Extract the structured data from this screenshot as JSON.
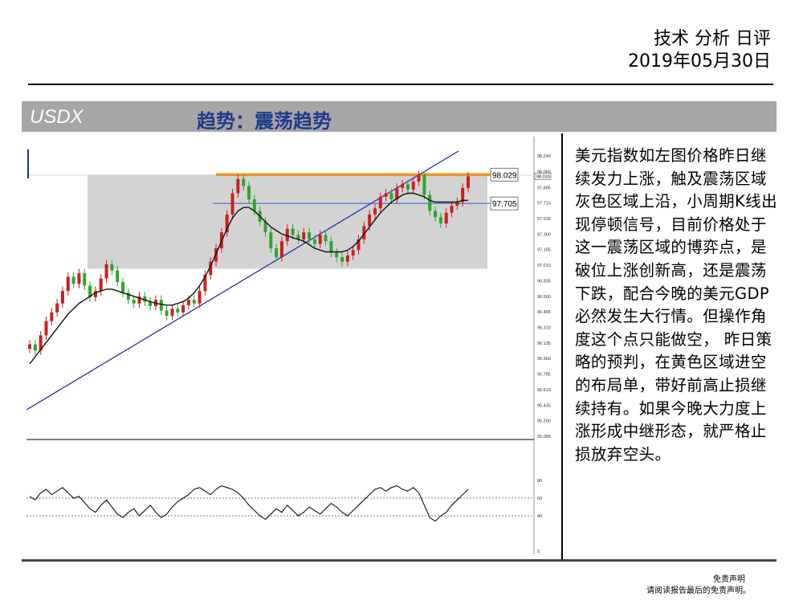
{
  "header": {
    "title": "技术 分析 日评",
    "date": "2019年05月30日"
  },
  "banner": {
    "symbol": "USDX",
    "trend": "趋势：震荡趋势"
  },
  "commentary": "美元指数如左图价格昨日继续发力上涨，触及震荡区域灰色区域上沿，小周期K线出现停顿信号，目前价格处于这一震荡区域的博弈点，是破位上涨创新高，还是震荡下跌，配合今晚的美元GDP必然发生大行情。但操作角度这个点只能做空， 昨日策略的预判，在黄色区域进空的布局单，带好前高止损继续持有。如果今晚大力度上涨形成中继形态，就严格止损放弃空头。",
  "disclaimer": {
    "line1": "免责声明",
    "line2": "请阅读报告最后的免责声明。"
  },
  "chart_data": {
    "type": "line",
    "price_axis": {
      "ylim": [
        95.085,
        98.24
      ],
      "ticks": [
        "98.240",
        "98.065",
        "97.885",
        "97.710",
        "97.535",
        "97.360",
        "97.185",
        "97.010",
        "96.835",
        "96.660",
        "96.485",
        "96.310",
        "96.135",
        "95.960",
        "95.785",
        "95.610",
        "95.435",
        "95.260",
        "95.085"
      ],
      "tick_values": [
        98.24,
        98.065,
        97.885,
        97.71,
        97.535,
        97.36,
        97.185,
        97.01,
        96.835,
        96.66,
        96.485,
        96.31,
        96.135,
        95.96,
        95.785,
        95.61,
        95.435,
        95.26,
        95.085
      ],
      "last_price_label": "98.010"
    },
    "levels": [
      {
        "label": "98.029",
        "value": 98.029,
        "color": "#e8961e"
      },
      {
        "label": "97.705",
        "value": 97.705,
        "color": "#3a6fd0"
      }
    ],
    "range_zone": {
      "top": 98.029,
      "bottom": 96.97,
      "color": "#d3d3d3"
    },
    "close_series": [
      96.12,
      96.05,
      96.22,
      96.38,
      96.48,
      96.58,
      96.72,
      96.88,
      96.8,
      96.92,
      96.78,
      96.65,
      96.72,
      96.86,
      97.02,
      96.95,
      96.82,
      96.7,
      96.62,
      96.58,
      96.66,
      96.6,
      96.55,
      96.62,
      96.5,
      96.44,
      96.52,
      96.48,
      96.56,
      96.62,
      96.58,
      96.72,
      96.9,
      97.05,
      97.2,
      97.38,
      97.58,
      97.82,
      97.98,
      97.9,
      97.75,
      97.62,
      97.5,
      97.38,
      97.2,
      97.1,
      97.28,
      97.42,
      97.35,
      97.3,
      97.38,
      97.3,
      97.25,
      97.35,
      97.28,
      97.15,
      97.1,
      97.05,
      97.12,
      97.18,
      97.3,
      97.45,
      97.58,
      97.65,
      97.78,
      97.82,
      97.75,
      97.88,
      97.92,
      97.86,
      97.95,
      98.02,
      97.8,
      97.62,
      97.55,
      97.48,
      97.6,
      97.68,
      97.72,
      97.88,
      98.01
    ],
    "ma_series": [
      95.9,
      95.98,
      96.06,
      96.14,
      96.22,
      96.3,
      96.38,
      96.46,
      96.52,
      96.58,
      96.62,
      96.66,
      96.7,
      96.72,
      96.74,
      96.74,
      96.72,
      96.7,
      96.68,
      96.66,
      96.64,
      96.62,
      96.6,
      96.58,
      96.57,
      96.56,
      96.56,
      96.58,
      96.6,
      96.64,
      96.7,
      96.78,
      96.88,
      97.0,
      97.14,
      97.28,
      97.42,
      97.54,
      97.62,
      97.66,
      97.66,
      97.62,
      97.56,
      97.5,
      97.44,
      97.4,
      97.36,
      97.34,
      97.32,
      97.3,
      97.28,
      97.24,
      97.2,
      97.18,
      97.16,
      97.16,
      97.16,
      97.16,
      97.18,
      97.22,
      97.28,
      97.36,
      97.44,
      97.52,
      97.6,
      97.66,
      97.72,
      97.76,
      97.8,
      97.82,
      97.82,
      97.8,
      97.78,
      97.74,
      97.72,
      97.72,
      97.72,
      97.72,
      97.72,
      97.74,
      97.74
    ],
    "oscillator": {
      "ylim": [
        0,
        100
      ],
      "ticks": [
        "80",
        "60",
        "40",
        "0"
      ],
      "tick_values": [
        80,
        60,
        40,
        0
      ],
      "reference_levels": [
        60,
        40
      ],
      "values": [
        62,
        58,
        66,
        70,
        64,
        68,
        72,
        66,
        60,
        62,
        55,
        48,
        44,
        52,
        58,
        50,
        42,
        38,
        44,
        48,
        40,
        46,
        52,
        44,
        38,
        42,
        50,
        56,
        60,
        64,
        70,
        72,
        68,
        64,
        70,
        74,
        72,
        70,
        66,
        60,
        52,
        46,
        40,
        36,
        42,
        48,
        44,
        52,
        46,
        40,
        44,
        50,
        46,
        42,
        48,
        54,
        50,
        44,
        40,
        46,
        52,
        58,
        64,
        70,
        72,
        68,
        72,
        74,
        70,
        68,
        72,
        66,
        52,
        38,
        34,
        40,
        44,
        52,
        58,
        64,
        70
      ]
    }
  }
}
